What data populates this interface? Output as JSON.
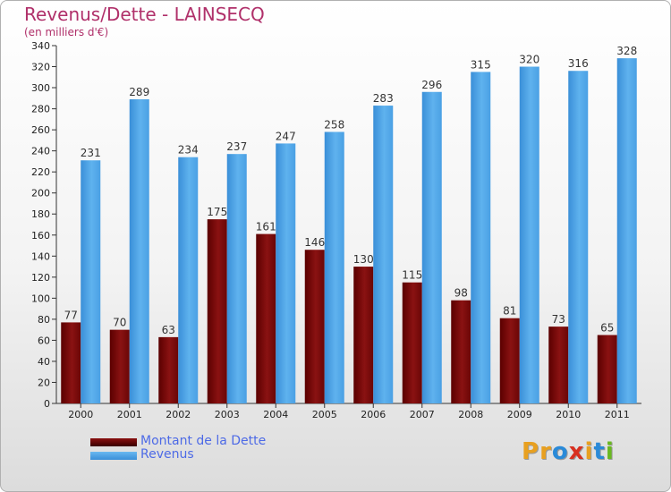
{
  "header": {
    "title": "Revenus/Dette - LAINSECQ",
    "subtitle": "(en milliers d'€)"
  },
  "colors": {
    "debt": "#7a0a0a",
    "revenue": "#4da6e8",
    "title": "#b0306a",
    "legend_text": "#4d6ae6"
  },
  "logo": {
    "text": "Proxiti",
    "letter_colors": [
      "#e8a020",
      "#e8a020",
      "#2a8ad8",
      "#d83020",
      "#e8a020",
      "#2a8ad8",
      "#6ab820"
    ]
  },
  "chart_data": {
    "type": "bar",
    "categories": [
      "2000",
      "2001",
      "2002",
      "2003",
      "2004",
      "2005",
      "2006",
      "2007",
      "2008",
      "2009",
      "2010",
      "2011"
    ],
    "series": [
      {
        "name": "Montant de la Dette",
        "values": [
          77,
          70,
          63,
          175,
          161,
          146,
          130,
          115,
          98,
          81,
          73,
          65
        ]
      },
      {
        "name": "Revenus",
        "values": [
          231,
          289,
          234,
          237,
          247,
          258,
          283,
          296,
          315,
          320,
          316,
          328
        ]
      }
    ],
    "title": "Revenus/Dette - LAINSECQ",
    "ylabel": "(en milliers d'€)",
    "ylim": [
      0,
      340
    ],
    "yticks": [
      0,
      20,
      40,
      60,
      80,
      100,
      120,
      140,
      160,
      180,
      200,
      220,
      240,
      260,
      280,
      300,
      320,
      340
    ],
    "grid": false,
    "legend": "bottom-left"
  }
}
